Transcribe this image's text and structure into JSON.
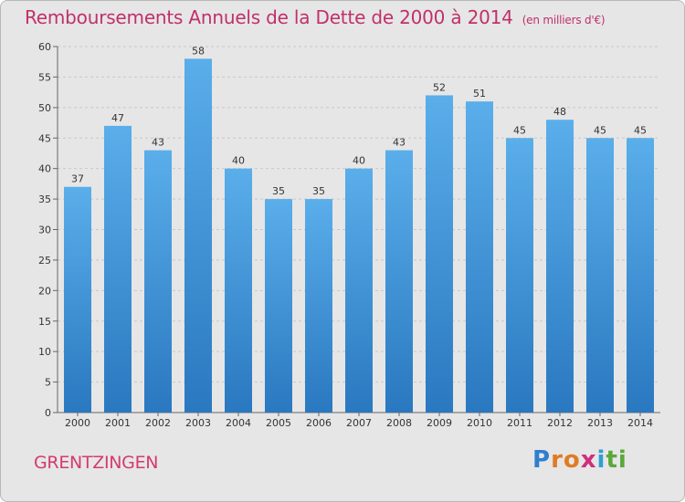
{
  "chart_data": {
    "type": "bar",
    "title": "Remboursements Annuels de la Dette de 2000 à 2014",
    "unit": "(en milliers d'€)",
    "categories": [
      "2000",
      "2001",
      "2002",
      "2003",
      "2004",
      "2005",
      "2006",
      "2007",
      "2008",
      "2009",
      "2010",
      "2011",
      "2012",
      "2013",
      "2014"
    ],
    "values": [
      37,
      47,
      43,
      58,
      40,
      35,
      35,
      40,
      43,
      52,
      51,
      45,
      48,
      45,
      45
    ],
    "ylim": [
      0,
      60
    ],
    "yticks": [
      0,
      5,
      10,
      15,
      20,
      25,
      30,
      35,
      40,
      45,
      50,
      55,
      60
    ],
    "grid": true,
    "bar_color": "#3a8fd6",
    "xlabel": "",
    "ylabel": ""
  },
  "footer": {
    "place": "GRENTZINGEN",
    "logo_letters": [
      "P",
      "r",
      "o",
      "x",
      "i",
      "t",
      "i"
    ],
    "logo_colors": [
      "#2f7fcf",
      "#e07b24",
      "#e07b24",
      "#cf2f7a",
      "#2f9fd0",
      "#5aa83a",
      "#5aa83a"
    ]
  }
}
